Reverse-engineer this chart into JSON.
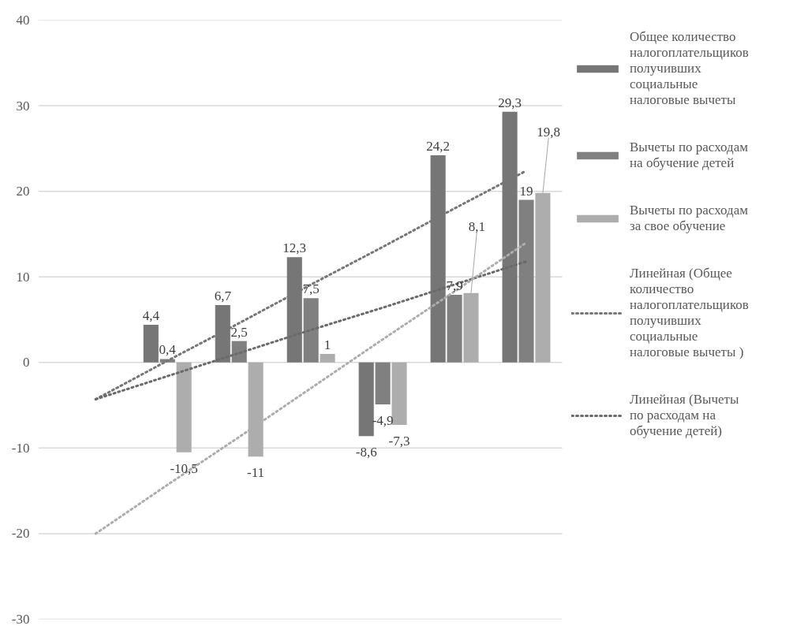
{
  "chart_data": {
    "type": "bar",
    "categories": [
      null,
      null,
      null,
      null,
      null,
      null,
      null
    ],
    "ylim": [
      -30,
      40
    ],
    "yticks": [
      -30,
      -20,
      -10,
      0,
      10,
      20,
      30,
      40
    ],
    "tick_labels": "y",
    "grid": "y",
    "legend": "right",
    "series": [
      {
        "name": "Общее количество налогоплательщиков получивших социальные налоговые вычеты",
        "color": "#767676",
        "values": [
          null,
          4.4,
          6.7,
          12.3,
          -8.6,
          24.2,
          29.3
        ],
        "value_labels": [
          null,
          "4,4",
          "6,7",
          "12,3",
          "-8,6",
          "24,2",
          "29,3"
        ]
      },
      {
        "name": "Вычеты по расходам на обучение детей",
        "color": "#808080",
        "values": [
          null,
          0.4,
          2.5,
          7.5,
          -4.9,
          7.9,
          19
        ],
        "value_labels": [
          null,
          "0,4",
          "2,5",
          "7,5",
          "-4,9",
          "7,9",
          "19"
        ]
      },
      {
        "name": "Вычеты по расходам за свое обучение",
        "color": "#adadad",
        "values": [
          null,
          -10.5,
          -11,
          1,
          -7.3,
          8.1,
          19.8
        ],
        "value_labels": [
          null,
          "-10,5",
          "-11",
          "1",
          "-7,3",
          "8,1",
          "19,8"
        ]
      },
      {
        "name": "Линейная (Общее количество налогоплательщиков получивших социальные налоговые вычеты )",
        "type": "line",
        "line_style": "dotted",
        "color": "#767676",
        "values": [
          -4.3,
          0.2,
          4.6,
          9.1,
          13.5,
          18.0,
          22.4
        ]
      },
      {
        "name": "Линейная (Вычеты по расходам на обучение детей)",
        "type": "line",
        "line_style": "dotted",
        "color": "#6a6a6a",
        "values": [
          -4.3,
          -1.6,
          1.1,
          3.8,
          6.4,
          9.1,
          11.8
        ]
      },
      {
        "type": "line",
        "line_style": "dotted",
        "color": "#adadad",
        "values": [
          -20,
          -14.3,
          -8.7,
          -3,
          2.7,
          8.3,
          14
        ]
      }
    ]
  }
}
